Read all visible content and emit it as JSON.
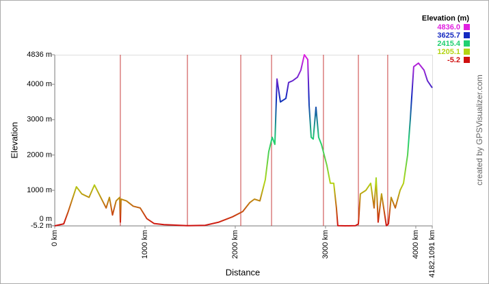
{
  "chart_data": {
    "type": "line",
    "x_label": "Distance",
    "y_label": "Elevation",
    "credit": "created by GPSVisualizer.com",
    "legend_title": "Elevation (m)",
    "legend": [
      {
        "value": 4836,
        "label": "4836.0",
        "color": "#e020e0"
      },
      {
        "value": 3625.7,
        "label": "3625.7",
        "color": "#1428c0"
      },
      {
        "value": 2415.4,
        "label": "2415.4",
        "color": "#20d070"
      },
      {
        "value": 1205.1,
        "label": "1205.1",
        "color": "#b4d414"
      },
      {
        "value": -5.2,
        "label": "-5.2",
        "color": "#d01010"
      }
    ],
    "xlim": [
      0,
      4182.1091
    ],
    "ylim": [
      -5.2,
      4836
    ],
    "xticks": [
      {
        "value": 0,
        "label": "0 km"
      },
      {
        "value": 1000,
        "label": "1000 km"
      },
      {
        "value": 2000,
        "label": "2000 km"
      },
      {
        "value": 3000,
        "label": "3000 km"
      },
      {
        "value": 4000,
        "label": "4000 km"
      },
      {
        "value": 4182.1091,
        "label": "4182.1091 km"
      }
    ],
    "yticks": [
      {
        "value": 4836,
        "label": "4836 m"
      },
      {
        "value": 4000,
        "label": "4000 m"
      },
      {
        "value": 3000,
        "label": "3000 m"
      },
      {
        "value": 2000,
        "label": "2000 m"
      },
      {
        "value": 1000,
        "label": "1000 m"
      },
      {
        "value": 0,
        "label": "0 m"
      },
      {
        "value": -5.2,
        "label": "-5.2 m"
      }
    ],
    "markers": [
      727,
      1470,
      2061,
      2402,
      2977,
      3364,
      3689
    ],
    "marker_color": "#c83c3c",
    "x": [
      0,
      100,
      150,
      240,
      300,
      380,
      440,
      490,
      570,
      606,
      640,
      680,
      720,
      727,
      735,
      795,
      870,
      947,
      1020,
      1100,
      1210,
      1470,
      1667,
      1818,
      1970,
      2083,
      2159,
      2212,
      2273,
      2333,
      2371,
      2409,
      2439,
      2462,
      2500,
      2561,
      2591,
      2636,
      2689,
      2727,
      2765,
      2803,
      2818,
      2841,
      2864,
      2894,
      2924,
      2955,
      3015,
      3053,
      3091,
      3121,
      3136,
      3220,
      3333,
      3364,
      3386,
      3447,
      3500,
      3538,
      3561,
      3583,
      3621,
      3674,
      3697,
      3727,
      3773,
      3826,
      3864,
      3909,
      3939,
      3977,
      4030,
      4091,
      4129,
      4182.1091
    ],
    "series": [
      {
        "name": "Elevation",
        "values": [
          -5,
          50,
          400,
          1100,
          900,
          800,
          1150,
          900,
          500,
          800,
          300,
          700,
          800,
          100,
          750,
          700,
          550,
          500,
          200,
          60,
          30,
          0,
          10,
          100,
          250,
          400,
          650,
          750,
          700,
          1300,
          2100,
          2500,
          2300,
          4150,
          3500,
          3600,
          4050,
          4100,
          4200,
          4400,
          4836,
          4700,
          3400,
          2500,
          2450,
          3350,
          2500,
          2300,
          1700,
          1200,
          1200,
          500,
          0,
          -5,
          0,
          50,
          900,
          1000,
          1200,
          500,
          1350,
          100,
          900,
          0,
          50,
          800,
          500,
          1000,
          1200,
          2000,
          3000,
          4500,
          4600,
          4400,
          4100,
          3900
        ]
      }
    ]
  }
}
